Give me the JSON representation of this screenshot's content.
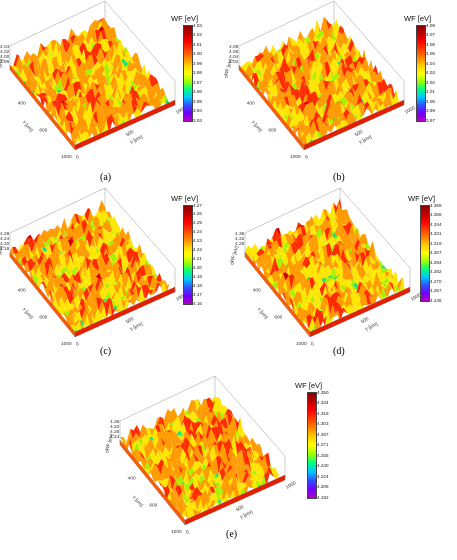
{
  "chart_data": [
    {
      "type": "surface3d",
      "caption": "(a)",
      "colorbar_title": "WF [eV]",
      "colorbar_ticks": [
        "4.03",
        "4.02",
        "4.01",
        "4.00",
        "3.99",
        "3.98",
        "3.97",
        "3.96",
        "3.95",
        "3.94",
        "3.93"
      ],
      "xlabel": "x [μm]",
      "ylabel": "y [μm]",
      "zlabel": "WF [eV]",
      "z_ticks": [
        "4.04",
        "4.02",
        "4.00",
        "3.96"
      ],
      "x_ticks": [
        "0",
        "400",
        "600",
        "1000"
      ],
      "y_ticks": [
        "0",
        "500",
        "1000"
      ],
      "z_range": [
        3.93,
        4.03
      ]
    },
    {
      "type": "surface3d",
      "caption": "(b)",
      "colorbar_title": "WF [eV]",
      "colorbar_ticks": [
        "4.09",
        "4.07",
        "4.06",
        "4.05",
        "4.04",
        "4.03",
        "4.02",
        "4.01",
        "4.00",
        "3.99",
        "3.97"
      ],
      "xlabel": "x [μm]",
      "ylabel": "y [μm]",
      "zlabel": "WF [eV]",
      "z_ticks": [
        "4.08",
        "4.06",
        "4.04",
        "4.02"
      ],
      "x_ticks": [
        "0",
        "400",
        "600",
        "1000"
      ],
      "y_ticks": [
        "0",
        "500",
        "1000"
      ],
      "z_range": [
        3.97,
        4.09
      ]
    },
    {
      "type": "surface3d",
      "caption": "(c)",
      "colorbar_title": "WF [eV]",
      "colorbar_ticks": [
        "4.27",
        "4.26",
        "4.25",
        "4.24",
        "4.23",
        "4.22",
        "4.21",
        "4.20",
        "4.19",
        "4.18",
        "4.17",
        "4.16"
      ],
      "xlabel": "x [μm]",
      "ylabel": "y [μm]",
      "zlabel": "WF [eV]",
      "z_ticks": [
        "4.28",
        "4.24",
        "4.20",
        "4.16"
      ],
      "x_ticks": [
        "0",
        "400",
        "600",
        "1000"
      ],
      "y_ticks": [
        "0",
        "500",
        "1000"
      ],
      "z_range": [
        4.16,
        4.27
      ]
    },
    {
      "type": "surface3d",
      "caption": "(d)",
      "colorbar_title": "WF [eV]",
      "colorbar_ticks": [
        "4.369",
        "4.356",
        "4.344",
        "4.331",
        "4.319",
        "4.307",
        "4.294",
        "4.282",
        "4.270",
        "4.257",
        "4.245"
      ],
      "xlabel": "x [μm]",
      "ylabel": "y [μm]",
      "zlabel": "WF [eV]",
      "z_ticks": [
        "4.36",
        "4.32",
        "4.28"
      ],
      "x_ticks": [
        "0",
        "400",
        "600",
        "1000"
      ],
      "y_ticks": [
        "0",
        "500",
        "1000"
      ],
      "z_range": [
        4.245,
        4.369
      ]
    },
    {
      "type": "surface3d",
      "caption": "(e)",
      "colorbar_title": "WF [eV]",
      "colorbar_ticks": [
        "4.350",
        "4.334",
        "4.318",
        "4.303",
        "4.287",
        "4.271",
        "4.255",
        "4.240",
        "4.224",
        "4.208",
        "4.192"
      ],
      "xlabel": "x [μm]",
      "ylabel": "y [μm]",
      "zlabel": "WF [eV]",
      "z_ticks": [
        "4.36",
        "4.32",
        "4.28",
        "4.24"
      ],
      "x_ticks": [
        "0",
        "400",
        "600",
        "1000"
      ],
      "y_ticks": [
        "0",
        "500",
        "1000"
      ],
      "z_range": [
        4.192,
        4.35
      ]
    }
  ]
}
